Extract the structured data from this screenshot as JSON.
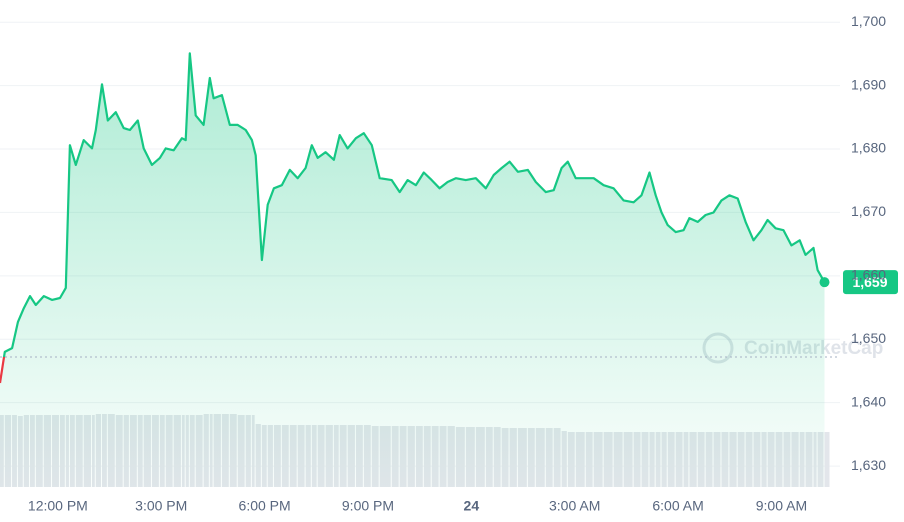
{
  "chart_data": {
    "type": "line",
    "x": [
      10.32,
      10.46,
      10.67,
      10.84,
      11.01,
      11.19,
      11.36,
      11.59,
      11.83,
      12.06,
      12.23,
      12.35,
      12.52,
      12.75,
      12.99,
      13.1,
      13.28,
      13.45,
      13.68,
      13.91,
      14.09,
      14.32,
      14.49,
      14.73,
      14.96,
      15.13,
      15.36,
      15.6,
      15.71,
      15.83,
      16.0,
      16.23,
      16.41,
      16.52,
      16.76,
      16.99,
      17.22,
      17.45,
      17.63,
      17.74,
      17.92,
      18.09,
      18.27,
      18.5,
      18.73,
      18.96,
      19.19,
      19.37,
      19.54,
      19.77,
      20.01,
      20.18,
      20.41,
      20.65,
      20.88,
      21.11,
      21.34,
      21.69,
      21.92,
      22.15,
      22.39,
      22.62,
      22.85,
      23.08,
      23.31,
      23.55,
      23.84,
      24.13,
      24.42,
      24.65,
      24.88,
      25.11,
      25.35,
      25.64,
      25.87,
      26.16,
      26.39,
      26.62,
      26.8,
      27.03,
      27.32,
      27.55,
      27.84,
      28.13,
      28.42,
      28.71,
      28.94,
      29.17,
      29.35,
      29.52,
      29.7,
      29.93,
      30.16,
      30.33,
      30.57,
      30.8,
      31.03,
      31.26,
      31.49,
      31.73,
      31.96,
      32.19,
      32.42,
      32.6,
      32.83,
      33.06,
      33.29,
      33.53,
      33.7,
      33.93,
      34.05,
      34.25
    ],
    "series": [
      {
        "color": "#16c784",
        "color_below": "#ea3943",
        "values": [
          1643.1,
          1648.0,
          1648.6,
          1652.7,
          1654.9,
          1656.8,
          1655.4,
          1656.8,
          1656.2,
          1656.5,
          1658.1,
          1680.6,
          1677.5,
          1681.4,
          1680.1,
          1683.0,
          1690.2,
          1684.5,
          1685.8,
          1683.3,
          1683.0,
          1684.5,
          1680.1,
          1677.5,
          1678.6,
          1680.1,
          1679.8,
          1681.7,
          1681.4,
          1695.1,
          1685.3,
          1683.8,
          1691.2,
          1688.0,
          1688.5,
          1683.8,
          1683.8,
          1683.0,
          1681.4,
          1679.0,
          1662.5,
          1671.2,
          1673.8,
          1674.3,
          1676.7,
          1675.4,
          1677.0,
          1680.6,
          1678.6,
          1679.5,
          1678.3,
          1682.2,
          1680.1,
          1681.7,
          1682.5,
          1680.6,
          1675.4,
          1675.1,
          1673.2,
          1675.1,
          1674.3,
          1676.3,
          1675.1,
          1673.8,
          1674.8,
          1675.4,
          1675.1,
          1675.4,
          1673.8,
          1675.9,
          1677.0,
          1678.0,
          1676.4,
          1676.7,
          1674.8,
          1673.2,
          1673.5,
          1677.0,
          1678.0,
          1675.4,
          1675.4,
          1675.4,
          1674.3,
          1673.8,
          1671.9,
          1671.6,
          1672.7,
          1676.3,
          1672.7,
          1670.0,
          1668.0,
          1666.9,
          1667.2,
          1669.1,
          1668.5,
          1669.6,
          1670.0,
          1671.9,
          1672.7,
          1672.2,
          1668.5,
          1665.6,
          1667.2,
          1668.8,
          1667.5,
          1667.2,
          1664.8,
          1665.6,
          1663.3,
          1664.4,
          1660.9,
          1659.0
        ]
      }
    ],
    "volume": [
      72,
      72,
      72,
      71,
      72,
      72,
      72,
      72,
      72,
      72,
      72,
      72,
      72,
      72,
      72,
      73,
      73,
      73,
      72,
      72,
      72,
      72,
      72,
      72,
      72,
      72,
      72,
      72,
      72,
      72,
      72,
      73,
      73,
      73,
      73,
      73,
      72,
      72,
      72,
      63,
      62,
      62,
      62,
      62,
      62,
      62,
      62,
      62,
      62,
      62,
      62,
      62,
      62,
      62,
      62,
      61,
      61,
      61,
      61,
      61,
      61,
      61,
      61,
      61,
      61,
      60,
      60,
      60,
      60,
      60,
      59,
      59,
      59,
      59,
      59,
      59,
      59,
      56,
      55,
      55,
      55,
      55,
      55,
      55,
      55,
      55,
      55,
      55,
      55,
      55,
      55,
      55,
      55,
      55,
      55,
      55,
      55,
      55,
      55,
      55,
      55,
      55,
      55,
      55,
      55,
      55,
      55,
      55,
      55,
      55,
      55,
      55
    ],
    "baseline": 1647.2,
    "current_price": {
      "value": 1659,
      "label": "1,659"
    },
    "xlim": [
      10.32,
      34.7
    ],
    "xticks": [
      {
        "value": 12,
        "label": "12:00 PM"
      },
      {
        "value": 15,
        "label": "3:00 PM"
      },
      {
        "value": 18,
        "label": "6:00 PM"
      },
      {
        "value": 21,
        "label": "9:00 PM"
      },
      24,
      {
        "value": 27,
        "label": "3:00 AM"
      },
      {
        "value": 30,
        "label": "6:00 AM"
      },
      {
        "value": 33,
        "label": "9:00 AM"
      }
    ],
    "ylim": [
      1626.7,
      1703.5
    ],
    "yticks": [
      {
        "value": 1630,
        "label": "1,630"
      },
      {
        "value": 1640,
        "label": "1,640"
      },
      {
        "value": 1650,
        "label": "1,650"
      },
      {
        "value": 1660,
        "label": "1,660"
      },
      {
        "value": 1670,
        "label": "1,670"
      },
      {
        "value": 1680,
        "label": "1,680"
      },
      {
        "value": 1690,
        "label": "1,690"
      },
      {
        "value": 1700,
        "label": "1,700"
      }
    ],
    "grid": true,
    "watermark": "CoinMarketCap"
  }
}
